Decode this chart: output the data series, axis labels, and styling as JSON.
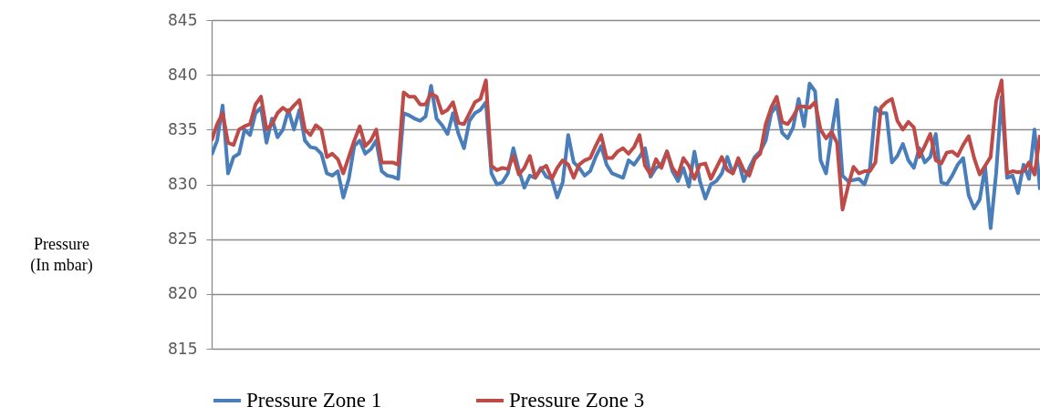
{
  "chart_data": {
    "type": "line",
    "ylabel": "Pressure\n(In mbar)",
    "categories": [
      null,
      null,
      null,
      null,
      null,
      null,
      null,
      null,
      null,
      null,
      null,
      null,
      null,
      null,
      null,
      null,
      null,
      null,
      null,
      null,
      null,
      null,
      null,
      null,
      null,
      null,
      null,
      null,
      null,
      null,
      null,
      null,
      null,
      null,
      null,
      null,
      null,
      null,
      null,
      null,
      null,
      null,
      null,
      null,
      null,
      null,
      null,
      null,
      null,
      null,
      null,
      null,
      null,
      null,
      null,
      null,
      null,
      null,
      null,
      null,
      null,
      null,
      null,
      null,
      null,
      null,
      null,
      null,
      null,
      null,
      null,
      null,
      null,
      null,
      null,
      null,
      null,
      null,
      null,
      null,
      null,
      null,
      null,
      null,
      null,
      null,
      null,
      null,
      null,
      null,
      null,
      null,
      null,
      null,
      null,
      null,
      null,
      null,
      null,
      null,
      null,
      null,
      null,
      null,
      null,
      null,
      null,
      null,
      null,
      null,
      null,
      null,
      null,
      null,
      null,
      null,
      null,
      null,
      null,
      null,
      null,
      null,
      null,
      null,
      null,
      null,
      null,
      null,
      null,
      null,
      null,
      null,
      null,
      null,
      null,
      null,
      null,
      null,
      null,
      null,
      null,
      null,
      null,
      null,
      null,
      null,
      null,
      null,
      null,
      null,
      null,
      null
    ],
    "series": [
      {
        "name": "Pressure  Zone 1",
        "color": "#4a7ebb",
        "values": [
          832.7,
          834,
          837.2,
          831,
          832.5,
          832.8,
          835,
          834.5,
          836.5,
          837,
          833.8,
          836,
          834.3,
          835,
          836.8,
          835,
          836.8,
          834,
          833.4,
          833.3,
          832.8,
          831,
          830.8,
          831.2,
          828.8,
          830.5,
          833.5,
          834,
          832.8,
          833.2,
          834,
          831.2,
          830.8,
          830.7,
          830.5,
          836.5,
          836.3,
          836,
          835.8,
          836.2,
          839,
          836,
          835.4,
          834.6,
          836.5,
          834.6,
          833.3,
          835.8,
          836.5,
          836.8,
          837.5,
          831,
          830,
          830.2,
          831,
          833.3,
          831.3,
          829.7,
          830.8,
          830.6,
          831.5,
          830.7,
          830.5,
          828.8,
          830.2,
          834.5,
          832,
          831.5,
          830.8,
          831.2,
          832.5,
          833.5,
          831.8,
          831,
          830.8,
          830.6,
          832.2,
          831.8,
          832.5,
          833.3,
          830.7,
          831.5,
          831.8,
          833,
          831.2,
          830.3,
          831.5,
          829.8,
          833,
          830.3,
          828.7,
          830,
          830.3,
          831,
          832.5,
          831,
          832.2,
          830.3,
          831.5,
          832.5,
          833,
          834,
          836.5,
          837.2,
          834.7,
          834.2,
          835.2,
          837.8,
          835.3,
          839.2,
          838.5,
          832.2,
          831,
          834.6,
          837.7,
          830.8,
          830.3,
          830.4,
          830.5,
          830,
          831.5,
          837,
          836.5,
          836.5,
          832,
          832.6,
          833.7,
          832.2,
          831.5,
          833.3,
          832,
          832.5,
          834.6,
          830.2,
          830,
          830.8,
          831.8,
          832.4,
          829,
          827.8,
          828.6,
          831.6,
          826,
          831,
          838,
          830.6,
          830.8,
          829.2,
          831.8,
          830.5,
          835,
          829.5
        ]
      },
      {
        "name": "Pressure  Zone 3",
        "color": "#be4b48",
        "values": [
          834,
          835.5,
          836.5,
          833.8,
          833.6,
          835,
          835.3,
          835.5,
          837.3,
          838,
          835,
          835.5,
          836.5,
          837,
          836.6,
          837.2,
          837.7,
          835,
          834.5,
          835.4,
          835,
          832.5,
          832.8,
          832.3,
          831,
          832.5,
          834,
          835.3,
          833.5,
          834,
          835,
          832,
          832,
          832,
          831.8,
          838.4,
          838,
          838,
          837.3,
          837.3,
          838.3,
          838,
          836.5,
          836.8,
          837.5,
          835.6,
          835.5,
          836.5,
          837.5,
          837.8,
          839.5,
          831.7,
          831.3,
          831.5,
          831.4,
          832.6,
          830.9,
          831.5,
          832.6,
          830.6,
          831.4,
          831.7,
          830.5,
          831.5,
          832.2,
          831.8,
          830.6,
          831.8,
          832.2,
          832.4,
          833.5,
          834.5,
          832.4,
          832.4,
          833,
          833.3,
          832.8,
          833.4,
          834.5,
          831.7,
          830.9,
          832.3,
          831.5,
          833,
          831.5,
          830.8,
          832.4,
          831.7,
          830.5,
          831.8,
          831.9,
          830.5,
          831.5,
          832.5,
          831.3,
          831,
          832.4,
          831.3,
          830.8,
          832.3,
          832.8,
          835.5,
          837,
          838,
          835.7,
          835.5,
          836.2,
          837.1,
          837.1,
          837,
          837.5,
          835,
          834.2,
          834.8,
          833.8,
          827.7,
          829.8,
          831.6,
          831,
          831.2,
          831.2,
          832,
          837,
          837.5,
          837.8,
          835.8,
          835,
          835.7,
          835.2,
          832.5,
          833.5,
          834.6,
          832.2,
          831.9,
          832.9,
          833,
          832.6,
          833.6,
          834.4,
          832.4,
          830.9,
          831.7,
          832.5,
          837.6,
          839.5,
          831,
          831.2,
          831.1,
          831.2,
          832,
          830.9,
          834.5
        ]
      }
    ],
    "ylim": [
      815,
      845
    ],
    "yticks": [
      815,
      820,
      825,
      830,
      835,
      840,
      845
    ],
    "grid": "y",
    "legend": "bottom",
    "tick_labels": "y",
    "marker": "none",
    "line_style": "solid"
  }
}
